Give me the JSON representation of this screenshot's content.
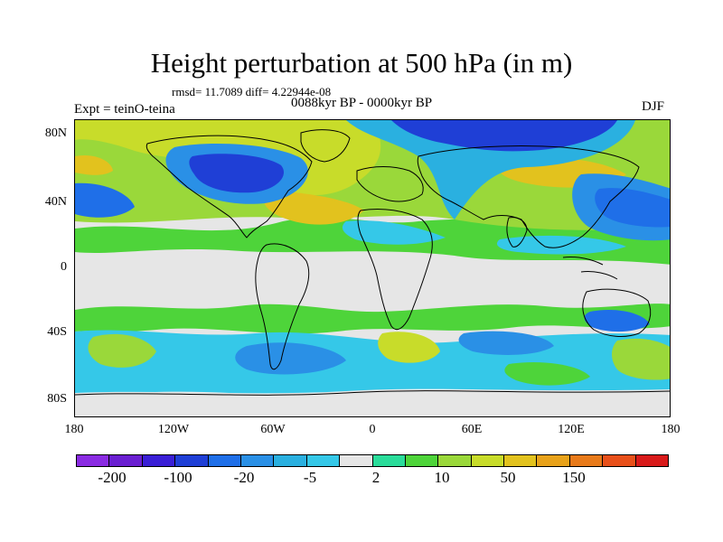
{
  "figure": {
    "title": "Height perturbation at 500 hPa (in m)",
    "stats": "rmsd= 11.7089 diff= 4.22944e-08",
    "period": "0088kyr BP - 0000kyr BP",
    "experiment": "Expt = teinO-teina",
    "season": "DJF"
  },
  "axes": {
    "y_ticks": [
      "80N",
      "40N",
      "0",
      "40S",
      "80S"
    ],
    "x_ticks": [
      "180",
      "120W",
      "60W",
      "0",
      "60E",
      "120E",
      "180"
    ]
  },
  "legend": {
    "colors": [
      "#8a2be2",
      "#6a1fd1",
      "#3a1fd6",
      "#1f3fd6",
      "#1f6fe8",
      "#2a90e6",
      "#2ab0e0",
      "#35c8e8",
      "#e6e6e6",
      "#2adc9a",
      "#4ed43a",
      "#9ad83a",
      "#c8dc2a",
      "#e2c21e",
      "#e8a21a",
      "#e87a1a",
      "#e8501a",
      "#d81a1a"
    ],
    "labels": [
      "-200",
      "-100",
      "-20",
      "-5",
      "2",
      "10",
      "50",
      "150"
    ]
  }
}
